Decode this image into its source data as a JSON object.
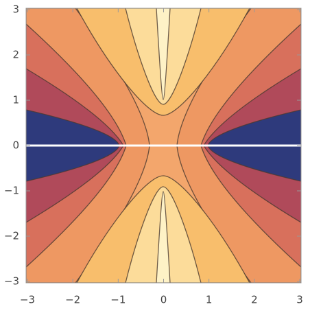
{
  "chart_data": {
    "type": "contour",
    "xlim": [
      -3.03,
      3.03
    ],
    "ylim": [
      -3.03,
      3.03
    ],
    "xticks": [
      {
        "value": -3,
        "label": "−3"
      },
      {
        "value": -2,
        "label": "−2"
      },
      {
        "value": -1,
        "label": "−1"
      },
      0,
      1,
      2,
      3
    ],
    "yticks": [
      {
        "value": -3,
        "label": "−3"
      },
      {
        "value": -2,
        "label": "−2"
      },
      {
        "value": -1,
        "label": "−1"
      },
      0,
      1,
      2,
      3
    ]
  }
}
